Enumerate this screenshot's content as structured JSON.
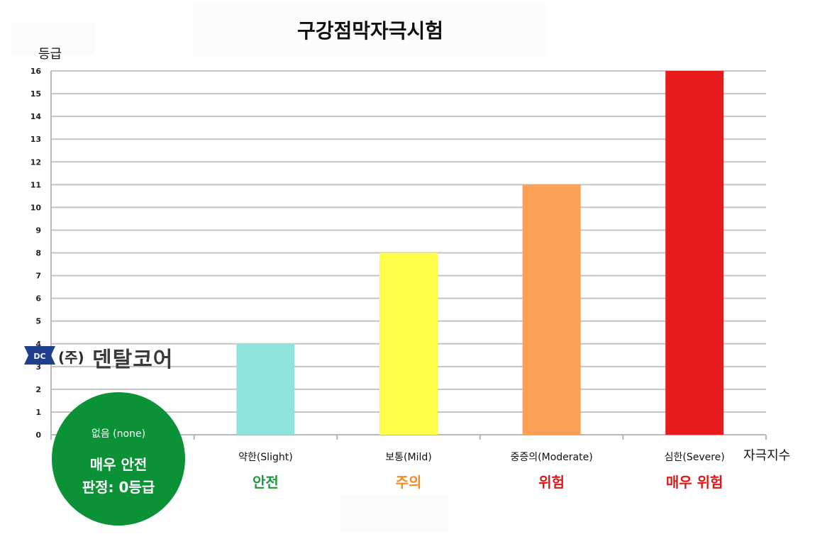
{
  "chart_data": {
    "type": "bar",
    "title": "구강점막자극시험",
    "ylabel": "등급",
    "xlabel": "자극지수",
    "ylim": [
      0,
      16
    ],
    "yticks": [
      0,
      1,
      2,
      3,
      4,
      5,
      6,
      7,
      8,
      9,
      10,
      11,
      12,
      13,
      14,
      15,
      16
    ],
    "grid": true,
    "categories": [
      "없음 (none)",
      "약한(Slight)",
      "보통(Mild)",
      "중증의(Moderate)",
      "심한(Severe)"
    ],
    "values": [
      0,
      4,
      8,
      11,
      16
    ],
    "colors": [
      "#0c9236",
      "#8ee3dc",
      "#ffff4a",
      "#fba055",
      "#e81c1c"
    ],
    "verdicts": [
      {
        "text": "",
        "color": "#0c9236"
      },
      {
        "text": "안전",
        "color": "#1a9a3a"
      },
      {
        "text": "주의",
        "color": "#f58a20"
      },
      {
        "text": "위험",
        "color": "#e01818"
      },
      {
        "text": "매우 위험",
        "color": "#e01818"
      }
    ]
  },
  "result_badge": {
    "category": "없음 (none)",
    "line1": "매우 안전",
    "line2": "판정: 0등급",
    "color": "#0c9236"
  },
  "logo": {
    "badge": "DC",
    "paren": "(주)",
    "name": "덴탈코어"
  }
}
